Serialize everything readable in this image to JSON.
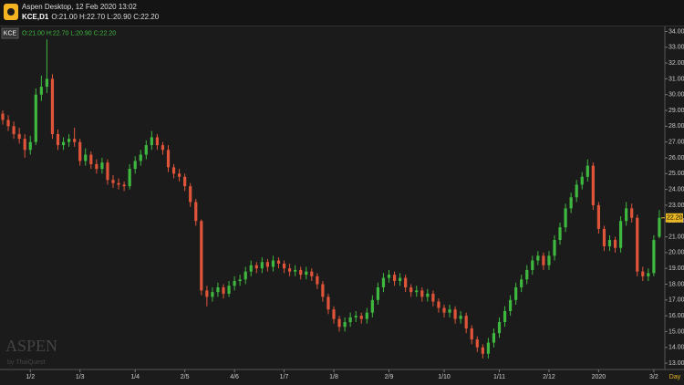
{
  "header": {
    "title": "Aspen Desktop, 12 Feb 2020 13:02",
    "symbol": "KCE,D1",
    "quote": "O:21.00 H:22.70 L:20.90 C:22.20"
  },
  "chart_data": {
    "type": "candlestick",
    "symbol": "KCE",
    "subtitle": "O:21.00 H:22.70 L:20.90 C:22.20",
    "watermark": "ASPEN",
    "watermark_sub": "by ThaiQuest",
    "period_label": "Day",
    "up_color": "#3fb83f",
    "down_color": "#e0553a",
    "grid": false,
    "ylim": [
      12.6,
      34.2
    ],
    "yticks": [
      {
        "value": 13,
        "label": "13.00"
      },
      {
        "value": 14,
        "label": "14.00"
      },
      {
        "value": 15,
        "label": "15.00"
      },
      {
        "value": 16,
        "label": "16.00"
      },
      {
        "value": 17,
        "label": "17.00"
      },
      {
        "value": 18,
        "label": "18.00"
      },
      {
        "value": 19,
        "label": "19.00"
      },
      {
        "value": 20,
        "label": "20.00"
      },
      {
        "value": 21,
        "label": "21.00"
      },
      {
        "value": 22,
        "label": "22.00"
      },
      {
        "value": 23,
        "label": "23.00"
      },
      {
        "value": 24,
        "label": "24.00"
      },
      {
        "value": 25,
        "label": "25.00"
      },
      {
        "value": 26,
        "label": "26.00"
      },
      {
        "value": 27,
        "label": "27.00"
      },
      {
        "value": 28,
        "label": "28.00"
      },
      {
        "value": 29,
        "label": "29.00"
      },
      {
        "value": 30,
        "label": "30.00"
      },
      {
        "value": 31,
        "label": "31.00"
      },
      {
        "value": 32,
        "label": "32.00"
      },
      {
        "value": 33,
        "label": "33.00"
      },
      {
        "value": 34,
        "label": "34.00"
      }
    ],
    "last_price": {
      "value": 22.2,
      "label": "22.20"
    },
    "categories": [
      null,
      null,
      null,
      null,
      null,
      "1/2",
      null,
      null,
      null,
      null,
      null,
      null,
      null,
      null,
      "1/3",
      null,
      null,
      null,
      null,
      null,
      null,
      null,
      null,
      null,
      "1/4",
      null,
      null,
      null,
      null,
      null,
      null,
      null,
      null,
      "2/5",
      null,
      null,
      null,
      null,
      null,
      null,
      null,
      null,
      "4/6",
      null,
      null,
      null,
      null,
      null,
      null,
      null,
      null,
      "1/7",
      null,
      null,
      null,
      null,
      null,
      null,
      null,
      null,
      "1/8",
      null,
      null,
      null,
      null,
      null,
      null,
      null,
      null,
      null,
      "2/9",
      null,
      null,
      null,
      null,
      null,
      null,
      null,
      null,
      null,
      "1/10",
      null,
      null,
      null,
      null,
      null,
      null,
      null,
      null,
      null,
      "1/11",
      null,
      null,
      null,
      null,
      null,
      null,
      null,
      null,
      "2/12",
      null,
      null,
      null,
      null,
      null,
      null,
      null,
      null,
      "2020",
      null,
      null,
      null,
      null,
      null,
      null,
      null,
      null,
      null,
      "3/2",
      null
    ],
    "candles": [
      [
        28.8,
        29.0,
        28.1,
        28.4
      ],
      [
        28.4,
        28.7,
        27.7,
        28.0
      ],
      [
        28.0,
        28.3,
        27.2,
        27.5
      ],
      [
        27.5,
        27.9,
        26.9,
        27.2
      ],
      [
        27.2,
        27.5,
        26.0,
        26.5
      ],
      [
        26.5,
        27.4,
        26.2,
        27.0
      ],
      [
        27.0,
        30.4,
        26.8,
        30.0
      ],
      [
        30.0,
        31.2,
        29.6,
        30.5
      ],
      [
        30.5,
        33.5,
        30.1,
        31.0
      ],
      [
        31.0,
        31.3,
        27.2,
        27.5
      ],
      [
        27.5,
        27.8,
        26.5,
        26.8
      ],
      [
        26.8,
        27.3,
        26.5,
        27.0
      ],
      [
        27.0,
        27.5,
        26.7,
        27.2
      ],
      [
        27.2,
        27.9,
        26.7,
        27.0
      ],
      [
        27.0,
        27.2,
        25.5,
        25.8
      ],
      [
        25.8,
        26.6,
        25.5,
        26.2
      ],
      [
        26.2,
        26.4,
        25.3,
        25.6
      ],
      [
        25.6,
        25.9,
        25.0,
        25.3
      ],
      [
        25.3,
        26.0,
        25.0,
        25.7
      ],
      [
        25.7,
        25.9,
        24.3,
        24.6
      ],
      [
        24.6,
        24.9,
        24.1,
        24.4
      ],
      [
        24.4,
        24.7,
        24.0,
        24.3
      ],
      [
        24.3,
        24.5,
        23.9,
        24.2
      ],
      [
        24.2,
        25.6,
        24.0,
        25.3
      ],
      [
        25.3,
        26.1,
        25.0,
        25.8
      ],
      [
        25.8,
        26.5,
        25.5,
        26.2
      ],
      [
        26.2,
        27.1,
        25.9,
        26.8
      ],
      [
        26.8,
        27.7,
        26.5,
        27.3
      ],
      [
        27.3,
        27.5,
        26.5,
        26.8
      ],
      [
        26.8,
        27.0,
        26.2,
        26.5
      ],
      [
        26.5,
        26.8,
        25.1,
        25.4
      ],
      [
        25.4,
        25.6,
        24.7,
        25.0
      ],
      [
        25.0,
        25.3,
        24.5,
        24.8
      ],
      [
        24.8,
        25.0,
        23.9,
        24.2
      ],
      [
        24.2,
        24.4,
        22.9,
        23.2
      ],
      [
        23.2,
        23.4,
        21.7,
        22.0
      ],
      [
        22.0,
        22.1,
        17.3,
        17.6
      ],
      [
        17.6,
        17.9,
        16.6,
        17.2
      ],
      [
        17.2,
        17.8,
        16.9,
        17.5
      ],
      [
        17.5,
        18.1,
        17.2,
        17.8
      ],
      [
        17.8,
        18.0,
        17.1,
        17.4
      ],
      [
        17.4,
        18.2,
        17.2,
        17.9
      ],
      [
        17.9,
        18.5,
        17.6,
        18.2
      ],
      [
        18.2,
        18.6,
        17.9,
        18.3
      ],
      [
        18.3,
        19.1,
        18.0,
        18.8
      ],
      [
        18.8,
        19.5,
        18.5,
        19.2
      ],
      [
        19.2,
        19.4,
        18.7,
        19.0
      ],
      [
        19.0,
        19.7,
        18.7,
        19.4
      ],
      [
        19.4,
        19.6,
        18.8,
        19.1
      ],
      [
        19.1,
        19.8,
        18.8,
        19.5
      ],
      [
        19.5,
        19.7,
        19.0,
        19.3
      ],
      [
        19.3,
        19.5,
        18.7,
        19.0
      ],
      [
        19.0,
        19.3,
        18.5,
        18.8
      ],
      [
        18.8,
        19.2,
        18.5,
        18.9
      ],
      [
        18.9,
        19.1,
        18.3,
        18.6
      ],
      [
        18.6,
        19.1,
        18.3,
        18.8
      ],
      [
        18.8,
        19.0,
        18.2,
        18.5
      ],
      [
        18.5,
        18.7,
        17.7,
        18.0
      ],
      [
        18.0,
        18.2,
        16.9,
        17.2
      ],
      [
        17.2,
        17.4,
        16.1,
        16.4
      ],
      [
        16.4,
        16.6,
        15.5,
        15.8
      ],
      [
        15.8,
        16.0,
        15.0,
        15.3
      ],
      [
        15.3,
        15.9,
        15.0,
        15.6
      ],
      [
        15.6,
        16.2,
        15.3,
        15.9
      ],
      [
        15.9,
        16.3,
        15.6,
        16.0
      ],
      [
        16.0,
        16.2,
        15.5,
        15.8
      ],
      [
        15.8,
        16.5,
        15.5,
        16.2
      ],
      [
        16.2,
        17.3,
        15.9,
        17.0
      ],
      [
        17.0,
        18.1,
        16.7,
        17.8
      ],
      [
        17.8,
        18.7,
        17.5,
        18.4
      ],
      [
        18.4,
        18.9,
        18.1,
        18.6
      ],
      [
        18.6,
        18.8,
        17.9,
        18.2
      ],
      [
        18.2,
        18.7,
        17.9,
        18.4
      ],
      [
        18.4,
        18.6,
        17.5,
        17.8
      ],
      [
        17.8,
        18.0,
        17.2,
        17.5
      ],
      [
        17.5,
        17.9,
        17.2,
        17.6
      ],
      [
        17.6,
        17.8,
        16.9,
        17.2
      ],
      [
        17.2,
        17.7,
        16.9,
        17.4
      ],
      [
        17.4,
        17.6,
        16.6,
        16.9
      ],
      [
        16.9,
        17.1,
        16.2,
        16.5
      ],
      [
        16.5,
        16.7,
        15.9,
        16.2
      ],
      [
        16.2,
        16.7,
        15.9,
        16.4
      ],
      [
        16.4,
        16.6,
        15.5,
        15.8
      ],
      [
        15.8,
        16.3,
        15.5,
        16.0
      ],
      [
        16.0,
        16.2,
        14.9,
        15.2
      ],
      [
        15.2,
        15.4,
        14.2,
        14.5
      ],
      [
        14.5,
        14.7,
        13.7,
        14.0
      ],
      [
        14.0,
        14.2,
        13.3,
        13.6
      ],
      [
        13.6,
        14.6,
        13.3,
        14.3
      ],
      [
        14.3,
        15.2,
        14.0,
        14.9
      ],
      [
        14.9,
        15.9,
        14.6,
        15.6
      ],
      [
        15.6,
        16.6,
        15.3,
        16.3
      ],
      [
        16.3,
        17.3,
        16.0,
        17.0
      ],
      [
        17.0,
        18.1,
        16.7,
        17.8
      ],
      [
        17.8,
        18.6,
        17.5,
        18.3
      ],
      [
        18.3,
        19.2,
        18.0,
        18.9
      ],
      [
        18.9,
        19.8,
        18.6,
        19.5
      ],
      [
        19.5,
        20.1,
        19.2,
        19.8
      ],
      [
        19.8,
        20.0,
        18.9,
        19.2
      ],
      [
        19.2,
        20.1,
        18.9,
        19.8
      ],
      [
        19.8,
        21.1,
        19.5,
        20.8
      ],
      [
        20.8,
        21.9,
        20.5,
        21.6
      ],
      [
        21.6,
        23.1,
        21.3,
        22.8
      ],
      [
        22.8,
        23.8,
        22.5,
        23.5
      ],
      [
        23.5,
        24.6,
        23.2,
        24.3
      ],
      [
        24.3,
        25.1,
        24.0,
        24.8
      ],
      [
        24.8,
        25.9,
        24.5,
        25.5
      ],
      [
        25.5,
        25.7,
        22.7,
        23.0
      ],
      [
        23.0,
        23.2,
        21.2,
        21.5
      ],
      [
        21.5,
        21.7,
        20.1,
        20.4
      ],
      [
        20.4,
        21.1,
        20.1,
        20.8
      ],
      [
        20.8,
        21.0,
        20.0,
        20.3
      ],
      [
        20.3,
        22.3,
        20.0,
        22.0
      ],
      [
        22.0,
        23.2,
        21.7,
        22.8
      ],
      [
        22.8,
        23.1,
        21.9,
        22.2
      ],
      [
        22.2,
        22.4,
        18.5,
        18.8
      ],
      [
        18.8,
        19.1,
        18.2,
        18.5
      ],
      [
        18.5,
        19.0,
        18.2,
        18.7
      ],
      [
        18.7,
        21.1,
        18.5,
        20.8
      ],
      [
        21.0,
        22.7,
        20.9,
        22.2
      ]
    ]
  }
}
